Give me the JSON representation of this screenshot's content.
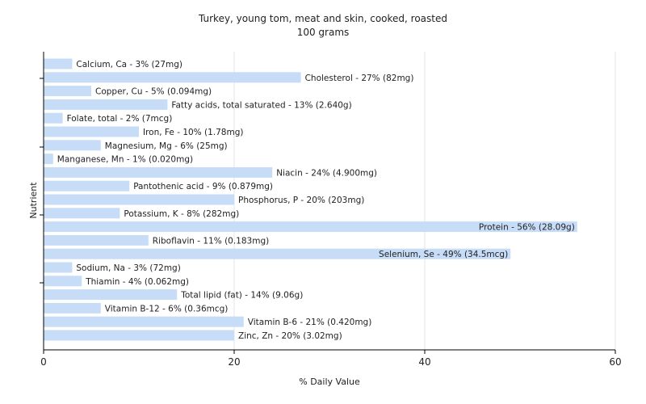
{
  "chart_data": {
    "type": "bar",
    "orientation": "horizontal",
    "title": "Turkey, young tom, meat and skin, cooked, roasted",
    "subtitle": "100 grams",
    "xlabel": "% Daily Value",
    "ylabel": "Nutrient",
    "xlim": [
      0,
      60
    ],
    "xticks": [
      "0",
      "20",
      "40",
      "60"
    ],
    "grid": true,
    "bar_color": "#c6dcf7",
    "categories": [
      "Calcium, Ca",
      "Cholesterol",
      "Copper, Cu",
      "Fatty acids, total saturated",
      "Folate, total",
      "Iron, Fe",
      "Magnesium, Mg",
      "Manganese, Mn",
      "Niacin",
      "Pantothenic acid",
      "Phosphorus, P",
      "Potassium, K",
      "Protein",
      "Riboflavin",
      "Selenium, Se",
      "Sodium, Na",
      "Thiamin",
      "Total lipid (fat)",
      "Vitamin B-12",
      "Vitamin B-6",
      "Zinc, Zn"
    ],
    "values": [
      3,
      27,
      5,
      13,
      2,
      10,
      6,
      1,
      24,
      9,
      20,
      8,
      56,
      11,
      49,
      3,
      4,
      14,
      6,
      21,
      20
    ],
    "labels": [
      "Calcium, Ca - 3% (27mg)",
      "Cholesterol - 27% (82mg)",
      "Copper, Cu - 5% (0.094mg)",
      "Fatty acids, total saturated - 13% (2.640g)",
      "Folate, total - 2% (7mcg)",
      "Iron, Fe - 10% (1.78mg)",
      "Magnesium, Mg - 6% (25mg)",
      "Manganese, Mn - 1% (0.020mg)",
      "Niacin - 24% (4.900mg)",
      "Pantothenic acid - 9% (0.879mg)",
      "Phosphorus, P - 20% (203mg)",
      "Potassium, K - 8% (282mg)",
      "Protein - 56% (28.09g)",
      "Riboflavin - 11% (0.183mg)",
      "Selenium, Se - 49% (34.5mcg)",
      "Sodium, Na - 3% (72mg)",
      "Thiamin - 4% (0.062mg)",
      "Total lipid (fat) - 14% (9.06g)",
      "Vitamin B-12 - 6% (0.36mcg)",
      "Vitamin B-6 - 21% (0.420mg)",
      "Zinc, Zn - 20% (3.02mg)"
    ]
  }
}
